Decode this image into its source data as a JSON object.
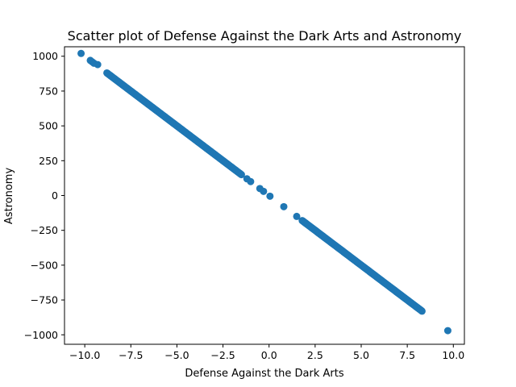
{
  "chart_data": {
    "type": "scatter",
    "title": "Scatter plot of Defense Against the Dark Arts and Astronomy",
    "xlabel": "Defense Against the Dark Arts",
    "ylabel": "Astronomy",
    "xlim": [
      -11.1,
      10.6
    ],
    "ylim": [
      -1068,
      1068
    ],
    "xticks": [
      -10.0,
      -7.5,
      -5.0,
      -2.5,
      0.0,
      2.5,
      5.0,
      7.5,
      10.0
    ],
    "xtick_labels": [
      "−10.0",
      "−7.5",
      "−5.0",
      "−2.5",
      "0.0",
      "2.5",
      "5.0",
      "7.5",
      "10.0"
    ],
    "yticks": [
      -1000,
      -750,
      -500,
      -250,
      0,
      250,
      500,
      750,
      1000
    ],
    "ytick_labels": [
      "−1000",
      "−750",
      "−500",
      "−250",
      "0",
      "250",
      "500",
      "750",
      "1000"
    ],
    "grid": false,
    "color": "#1f77b4",
    "slope": -100,
    "isolated_points": [
      {
        "x": -10.2,
        "y": 1020
      },
      {
        "x": -9.7,
        "y": 970
      },
      {
        "x": -9.6,
        "y": 960
      },
      {
        "x": -9.5,
        "y": 950
      },
      {
        "x": -9.3,
        "y": 940
      },
      {
        "x": -1.2,
        "y": 120
      },
      {
        "x": -1.0,
        "y": 100
      },
      {
        "x": -0.5,
        "y": 50
      },
      {
        "x": -0.3,
        "y": 30
      },
      {
        "x": 0.05,
        "y": -5
      },
      {
        "x": 0.8,
        "y": -80
      },
      {
        "x": 1.5,
        "y": -150
      },
      {
        "x": 9.7,
        "y": -970
      }
    ],
    "dense_segments": [
      {
        "x_start": -8.8,
        "x_end": -1.5
      },
      {
        "x_start": 1.8,
        "x_end": 8.3
      }
    ]
  }
}
